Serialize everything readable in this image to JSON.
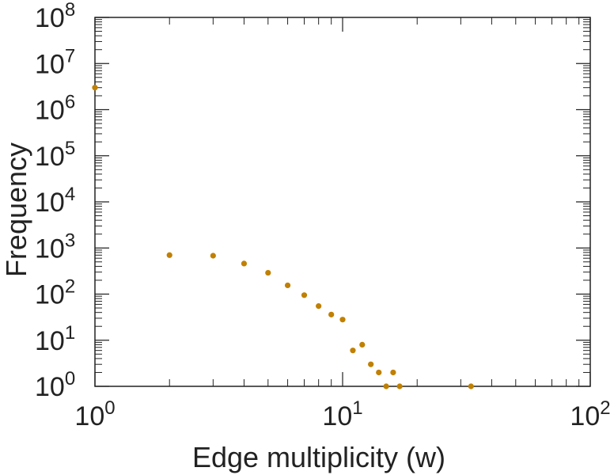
{
  "chart_data": {
    "type": "scatter",
    "title": "",
    "xlabel": "Edge multiplicity (w)",
    "ylabel": "Frequency",
    "x_scale": "log",
    "y_scale": "log",
    "xlim": [
      1,
      100
    ],
    "ylim": [
      1,
      100000000
    ],
    "grid": false,
    "marker_color": "#c08000",
    "x_ticks": [
      {
        "value": 1,
        "base": "10",
        "exp": "0"
      },
      {
        "value": 10,
        "base": "10",
        "exp": "1"
      },
      {
        "value": 100,
        "base": "10",
        "exp": "2"
      }
    ],
    "y_ticks": [
      {
        "value": 1,
        "base": "10",
        "exp": "0"
      },
      {
        "value": 10,
        "base": "10",
        "exp": "1"
      },
      {
        "value": 100,
        "base": "10",
        "exp": "2"
      },
      {
        "value": 1000,
        "base": "10",
        "exp": "3"
      },
      {
        "value": 10000,
        "base": "10",
        "exp": "4"
      },
      {
        "value": 100000,
        "base": "10",
        "exp": "5"
      },
      {
        "value": 1000000,
        "base": "10",
        "exp": "6"
      },
      {
        "value": 10000000,
        "base": "10",
        "exp": "7"
      },
      {
        "value": 100000000,
        "base": "10",
        "exp": "8"
      }
    ],
    "points": [
      {
        "x": 1,
        "y": 3000000
      },
      {
        "x": 2,
        "y": 700
      },
      {
        "x": 3,
        "y": 680
      },
      {
        "x": 4,
        "y": 460
      },
      {
        "x": 5,
        "y": 290
      },
      {
        "x": 6,
        "y": 155
      },
      {
        "x": 7,
        "y": 95
      },
      {
        "x": 8,
        "y": 55
      },
      {
        "x": 9,
        "y": 36
      },
      {
        "x": 10,
        "y": 28
      },
      {
        "x": 11,
        "y": 6
      },
      {
        "x": 12,
        "y": 8
      },
      {
        "x": 13,
        "y": 3
      },
      {
        "x": 14,
        "y": 2
      },
      {
        "x": 15,
        "y": 1
      },
      {
        "x": 16,
        "y": 2
      },
      {
        "x": 17,
        "y": 1
      },
      {
        "x": 33,
        "y": 1
      }
    ]
  }
}
